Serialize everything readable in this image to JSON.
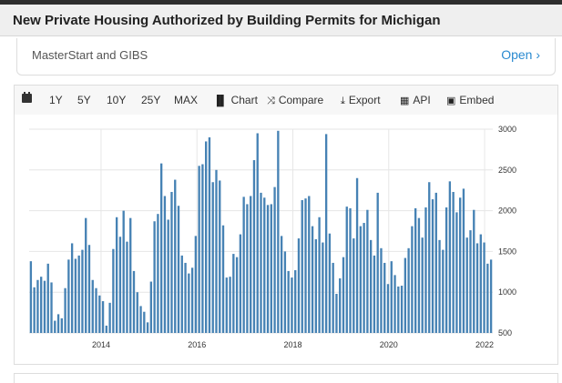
{
  "header": {
    "title": "New Private Housing Authorized by Building Permits for Michigan"
  },
  "promo": {
    "name": "MasterStart and GIBS",
    "open_label": "Open ›"
  },
  "toolbar": {
    "items": [
      {
        "label": "1Y",
        "icon": ""
      },
      {
        "label": "5Y",
        "icon": ""
      },
      {
        "label": "10Y",
        "icon": ""
      },
      {
        "label": "25Y",
        "icon": ""
      },
      {
        "label": "MAX",
        "icon": ""
      },
      {
        "label": "Chart",
        "icon": "bar-chart-icon"
      },
      {
        "label": "Compare",
        "icon": "shuffle-icon"
      },
      {
        "label": "Export",
        "icon": "download-icon"
      },
      {
        "label": "API",
        "icon": "grid-icon"
      },
      {
        "label": "Embed",
        "icon": "image-icon"
      }
    ]
  },
  "colors": {
    "bar": "#4682b4",
    "grid": "#e6e6e6",
    "link": "#2a8ad0"
  },
  "chart_data": {
    "type": "bar",
    "ylim": [
      500,
      3000
    ],
    "y_ticks": [
      3000,
      2500,
      2000,
      1500,
      1000,
      500
    ],
    "x_ticks": [
      "2014",
      "2016",
      "2018",
      "2020",
      "2022"
    ],
    "x_tick_positions": [
      2014,
      2016,
      2018,
      2020,
      2022
    ],
    "x_start": 2012.5,
    "x_end": 2022.17,
    "grid": true,
    "values": [
      1380,
      1060,
      1150,
      1190,
      1140,
      1350,
      1120,
      650,
      730,
      680,
      1050,
      1400,
      1600,
      1410,
      1450,
      1520,
      1910,
      1580,
      1150,
      1050,
      960,
      890,
      590,
      870,
      1530,
      1920,
      1680,
      2000,
      1620,
      1910,
      1260,
      1000,
      830,
      760,
      630,
      1130,
      1870,
      1960,
      2580,
      2180,
      1890,
      2230,
      2380,
      2060,
      1450,
      1360,
      1230,
      1300,
      1690,
      2550,
      2570,
      2850,
      2900,
      2350,
      2500,
      2370,
      1820,
      1180,
      1190,
      1470,
      1430,
      1710,
      2170,
      2080,
      2180,
      2620,
      2950,
      2220,
      2160,
      2070,
      2080,
      2290,
      2980,
      1690,
      1500,
      1260,
      1180,
      1270,
      1660,
      2130,
      2150,
      2180,
      1810,
      1650,
      1920,
      1610,
      2940,
      1720,
      1360,
      980,
      1170,
      1430,
      2050,
      2030,
      1660,
      2400,
      1810,
      1850,
      2010,
      1640,
      1450,
      2220,
      1540,
      1360,
      1100,
      1380,
      1210,
      1070,
      1080,
      1420,
      1540,
      1810,
      2030,
      1910,
      1670,
      2040,
      2350,
      2140,
      2220,
      1640,
      1520,
      2040,
      2360,
      2230,
      1980,
      2160,
      2270,
      1670,
      1760,
      2010,
      1600,
      1710,
      1610,
      1350,
      1400
    ]
  }
}
